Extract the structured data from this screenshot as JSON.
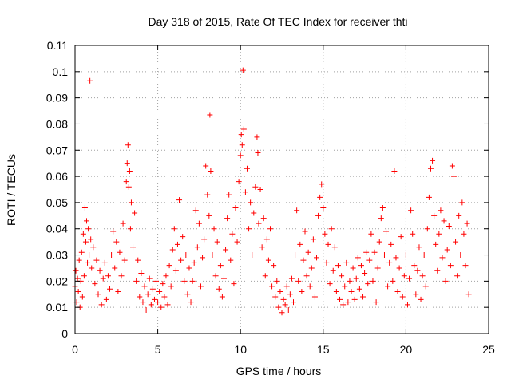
{
  "chart_data": {
    "type": "scatter",
    "title": "Day 318 of 2015, Rate Of TEC Index for receiver thti",
    "xlabel": "GPS time / hours",
    "ylabel": "ROTI / TECUs",
    "xlim": [
      0,
      25
    ],
    "ylim": [
      0,
      0.11
    ],
    "x_ticks": [
      "0",
      "5",
      "10",
      "15",
      "20",
      "25"
    ],
    "y_ticks": [
      "0",
      "0.01",
      "0.02",
      "0.03",
      "0.04",
      "0.05",
      "0.06",
      "0.07",
      "0.08",
      "0.09",
      "0.1",
      "0.11"
    ],
    "grid": true,
    "marker": "+",
    "color": "#ff0000",
    "series": [
      {
        "points": [
          [
            0.0,
            0.018
          ],
          [
            0.05,
            0.024
          ],
          [
            0.1,
            0.012
          ],
          [
            0.15,
            0.021
          ],
          [
            0.2,
            0.016
          ],
          [
            0.25,
            0.028
          ],
          [
            0.3,
            0.01
          ],
          [
            0.35,
            0.02
          ],
          [
            0.4,
            0.031
          ],
          [
            0.45,
            0.014
          ],
          [
            0.5,
            0.038
          ],
          [
            0.55,
            0.022
          ],
          [
            0.6,
            0.048
          ],
          [
            0.65,
            0.035
          ],
          [
            0.7,
            0.043
          ],
          [
            0.75,
            0.027
          ],
          [
            0.8,
            0.04
          ],
          [
            0.85,
            0.03
          ],
          [
            0.9,
            0.0965
          ],
          [
            0.95,
            0.036
          ],
          [
            1.0,
            0.025
          ],
          [
            1.1,
            0.033
          ],
          [
            1.2,
            0.019
          ],
          [
            1.3,
            0.028
          ],
          [
            1.4,
            0.015
          ],
          [
            1.5,
            0.024
          ],
          [
            1.6,
            0.011
          ],
          [
            1.7,
            0.021
          ],
          [
            1.8,
            0.027
          ],
          [
            1.9,
            0.013
          ],
          [
            2.0,
            0.022
          ],
          [
            2.1,
            0.017
          ],
          [
            2.2,
            0.03
          ],
          [
            2.3,
            0.039
          ],
          [
            2.4,
            0.025
          ],
          [
            2.5,
            0.035
          ],
          [
            2.6,
            0.016
          ],
          [
            2.7,
            0.031
          ],
          [
            2.8,
            0.022
          ],
          [
            2.9,
            0.042
          ],
          [
            3.0,
            0.028
          ],
          [
            3.1,
            0.058
          ],
          [
            3.15,
            0.065
          ],
          [
            3.2,
            0.072
          ],
          [
            3.25,
            0.056
          ],
          [
            3.3,
            0.062
          ],
          [
            3.35,
            0.04
          ],
          [
            3.4,
            0.05
          ],
          [
            3.5,
            0.033
          ],
          [
            3.6,
            0.046
          ],
          [
            3.7,
            0.02
          ],
          [
            3.8,
            0.028
          ],
          [
            3.9,
            0.014
          ],
          [
            4.0,
            0.023
          ],
          [
            4.1,
            0.012
          ],
          [
            4.2,
            0.018
          ],
          [
            4.3,
            0.009
          ],
          [
            4.4,
            0.015
          ],
          [
            4.5,
            0.021
          ],
          [
            4.6,
            0.011
          ],
          [
            4.7,
            0.017
          ],
          [
            4.8,
            0.013
          ],
          [
            4.9,
            0.02
          ],
          [
            5.0,
            0.012
          ],
          [
            5.1,
            0.016
          ],
          [
            5.2,
            0.01
          ],
          [
            5.3,
            0.019
          ],
          [
            5.4,
            0.014
          ],
          [
            5.5,
            0.022
          ],
          [
            5.6,
            0.011
          ],
          [
            5.7,
            0.026
          ],
          [
            5.8,
            0.018
          ],
          [
            5.9,
            0.032
          ],
          [
            6.0,
            0.04
          ],
          [
            6.1,
            0.024
          ],
          [
            6.2,
            0.034
          ],
          [
            6.3,
            0.051
          ],
          [
            6.4,
            0.028
          ],
          [
            6.5,
            0.037
          ],
          [
            6.6,
            0.02
          ],
          [
            6.7,
            0.03
          ],
          [
            6.8,
            0.015
          ],
          [
            6.9,
            0.025
          ],
          [
            7.0,
            0.012
          ],
          [
            7.1,
            0.02
          ],
          [
            7.2,
            0.027
          ],
          [
            7.3,
            0.047
          ],
          [
            7.4,
            0.033
          ],
          [
            7.5,
            0.042
          ],
          [
            7.6,
            0.018
          ],
          [
            7.7,
            0.029
          ],
          [
            7.8,
            0.036
          ],
          [
            7.9,
            0.064
          ],
          [
            8.0,
            0.053
          ],
          [
            8.1,
            0.045
          ],
          [
            8.15,
            0.0835
          ],
          [
            8.2,
            0.062
          ],
          [
            8.3,
            0.03
          ],
          [
            8.4,
            0.04
          ],
          [
            8.5,
            0.022
          ],
          [
            8.6,
            0.035
          ],
          [
            8.7,
            0.017
          ],
          [
            8.8,
            0.026
          ],
          [
            8.9,
            0.014
          ],
          [
            9.0,
            0.021
          ],
          [
            9.1,
            0.032
          ],
          [
            9.2,
            0.044
          ],
          [
            9.3,
            0.053
          ],
          [
            9.4,
            0.028
          ],
          [
            9.5,
            0.038
          ],
          [
            9.6,
            0.019
          ],
          [
            9.7,
            0.048
          ],
          [
            9.8,
            0.035
          ],
          [
            9.9,
            0.058
          ],
          [
            10.0,
            0.068
          ],
          [
            10.05,
            0.076
          ],
          [
            10.1,
            0.072
          ],
          [
            10.15,
            0.1005
          ],
          [
            10.2,
            0.078
          ],
          [
            10.3,
            0.054
          ],
          [
            10.4,
            0.063
          ],
          [
            10.5,
            0.04
          ],
          [
            10.6,
            0.05
          ],
          [
            10.7,
            0.03
          ],
          [
            10.8,
            0.046
          ],
          [
            10.9,
            0.056
          ],
          [
            11.0,
            0.075
          ],
          [
            11.05,
            0.069
          ],
          [
            11.1,
            0.042
          ],
          [
            11.2,
            0.055
          ],
          [
            11.3,
            0.033
          ],
          [
            11.4,
            0.044
          ],
          [
            11.5,
            0.022
          ],
          [
            11.6,
            0.036
          ],
          [
            11.7,
            0.028
          ],
          [
            11.8,
            0.04
          ],
          [
            11.9,
            0.018
          ],
          [
            12.0,
            0.026
          ],
          [
            12.1,
            0.014
          ],
          [
            12.2,
            0.02
          ],
          [
            12.3,
            0.01
          ],
          [
            12.4,
            0.016
          ],
          [
            12.5,
            0.008
          ],
          [
            12.6,
            0.013
          ],
          [
            12.7,
            0.011
          ],
          [
            12.8,
            0.018
          ],
          [
            12.9,
            0.009
          ],
          [
            13.0,
            0.015
          ],
          [
            13.1,
            0.021
          ],
          [
            13.2,
            0.012
          ],
          [
            13.3,
            0.03
          ],
          [
            13.4,
            0.047
          ],
          [
            13.5,
            0.02
          ],
          [
            13.6,
            0.034
          ],
          [
            13.7,
            0.016
          ],
          [
            13.8,
            0.028
          ],
          [
            13.9,
            0.039
          ],
          [
            14.0,
            0.022
          ],
          [
            14.1,
            0.031
          ],
          [
            14.2,
            0.018
          ],
          [
            14.3,
            0.025
          ],
          [
            14.4,
            0.036
          ],
          [
            14.5,
            0.014
          ],
          [
            14.6,
            0.029
          ],
          [
            14.7,
            0.045
          ],
          [
            14.8,
            0.052
          ],
          [
            14.9,
            0.057
          ],
          [
            15.0,
            0.048
          ],
          [
            15.1,
            0.038
          ],
          [
            15.2,
            0.027
          ],
          [
            15.3,
            0.034
          ],
          [
            15.4,
            0.019
          ],
          [
            15.5,
            0.04
          ],
          [
            15.6,
            0.024
          ],
          [
            15.7,
            0.033
          ],
          [
            15.8,
            0.016
          ],
          [
            15.9,
            0.026
          ],
          [
            16.0,
            0.013
          ],
          [
            16.1,
            0.022
          ],
          [
            16.2,
            0.011
          ],
          [
            16.3,
            0.018
          ],
          [
            16.4,
            0.027
          ],
          [
            16.5,
            0.012
          ],
          [
            16.6,
            0.02
          ],
          [
            16.7,
            0.016
          ],
          [
            16.8,
            0.025
          ],
          [
            16.9,
            0.013
          ],
          [
            17.0,
            0.021
          ],
          [
            17.1,
            0.029
          ],
          [
            17.2,
            0.017
          ],
          [
            17.3,
            0.026
          ],
          [
            17.4,
            0.014
          ],
          [
            17.5,
            0.023
          ],
          [
            17.6,
            0.031
          ],
          [
            17.7,
            0.019
          ],
          [
            17.8,
            0.028
          ],
          [
            17.9,
            0.038
          ],
          [
            18.0,
            0.02
          ],
          [
            18.1,
            0.031
          ],
          [
            18.2,
            0.012
          ],
          [
            18.3,
            0.025
          ],
          [
            18.4,
            0.035
          ],
          [
            18.5,
            0.044
          ],
          [
            18.6,
            0.048
          ],
          [
            18.7,
            0.03
          ],
          [
            18.8,
            0.039
          ],
          [
            18.9,
            0.018
          ],
          [
            19.0,
            0.027
          ],
          [
            19.1,
            0.034
          ],
          [
            19.2,
            0.02
          ],
          [
            19.3,
            0.062
          ],
          [
            19.4,
            0.029
          ],
          [
            19.5,
            0.016
          ],
          [
            19.6,
            0.025
          ],
          [
            19.7,
            0.037
          ],
          [
            19.8,
            0.014
          ],
          [
            19.9,
            0.022
          ],
          [
            20.0,
            0.03
          ],
          [
            20.1,
            0.011
          ],
          [
            20.2,
            0.021
          ],
          [
            20.3,
            0.047
          ],
          [
            20.4,
            0.038
          ],
          [
            20.5,
            0.026
          ],
          [
            20.6,
            0.015
          ],
          [
            20.7,
            0.024
          ],
          [
            20.8,
            0.033
          ],
          [
            20.9,
            0.013
          ],
          [
            21.0,
            0.022
          ],
          [
            21.1,
            0.03
          ],
          [
            21.2,
            0.018
          ],
          [
            21.3,
            0.04
          ],
          [
            21.4,
            0.052
          ],
          [
            21.5,
            0.063
          ],
          [
            21.6,
            0.066
          ],
          [
            21.7,
            0.045
          ],
          [
            21.8,
            0.034
          ],
          [
            21.9,
            0.024
          ],
          [
            22.0,
            0.038
          ],
          [
            22.1,
            0.047
          ],
          [
            22.2,
            0.029
          ],
          [
            22.3,
            0.043
          ],
          [
            22.4,
            0.02
          ],
          [
            22.5,
            0.032
          ],
          [
            22.6,
            0.041
          ],
          [
            22.7,
            0.026
          ],
          [
            22.8,
            0.064
          ],
          [
            22.9,
            0.06
          ],
          [
            23.0,
            0.035
          ],
          [
            23.1,
            0.022
          ],
          [
            23.2,
            0.045
          ],
          [
            23.3,
            0.03
          ],
          [
            23.4,
            0.05
          ],
          [
            23.5,
            0.038
          ],
          [
            23.6,
            0.026
          ],
          [
            23.7,
            0.042
          ],
          [
            23.8,
            0.015
          ]
        ]
      }
    ]
  }
}
